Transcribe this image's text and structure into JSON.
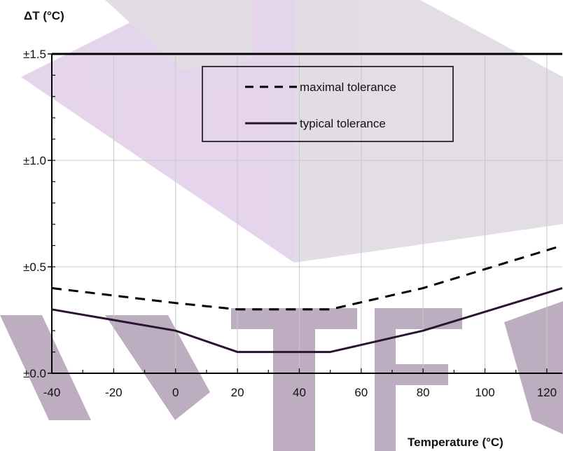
{
  "chart_data": {
    "type": "line",
    "title": "",
    "ylabel": "ΔT (°C)",
    "xlabel": "Temperature (°C)",
    "xlim": [
      -40,
      125
    ],
    "ylim": [
      0,
      1.5
    ],
    "x_ticks": [
      -40,
      -20,
      0,
      20,
      40,
      60,
      80,
      100,
      120
    ],
    "x_tick_labels": [
      "-40",
      "-20",
      "0",
      "20",
      "40",
      "60",
      "80",
      "100",
      "120"
    ],
    "y_ticks": [
      0,
      0.5,
      1.0,
      1.5
    ],
    "y_tick_labels": [
      "±0.0",
      "±0.5",
      "±1.0",
      "±1.5"
    ],
    "grid": true,
    "legend_position": "top-center",
    "series": [
      {
        "name": "maximal tolerance",
        "style": "dashed",
        "color": "#000000",
        "x": [
          -40,
          0,
          20,
          50,
          80,
          125
        ],
        "y": [
          0.4,
          0.33,
          0.3,
          0.3,
          0.4,
          0.6
        ]
      },
      {
        "name": "typical tolerance",
        "style": "solid",
        "color": "#2a1530",
        "x": [
          -40,
          0,
          20,
          50,
          80,
          125
        ],
        "y": [
          0.3,
          0.2,
          0.1,
          0.1,
          0.2,
          0.4
        ]
      }
    ],
    "watermark": {
      "colors": [
        "#dcc6e6",
        "#d9d2dd",
        "#a892ac"
      ]
    }
  }
}
